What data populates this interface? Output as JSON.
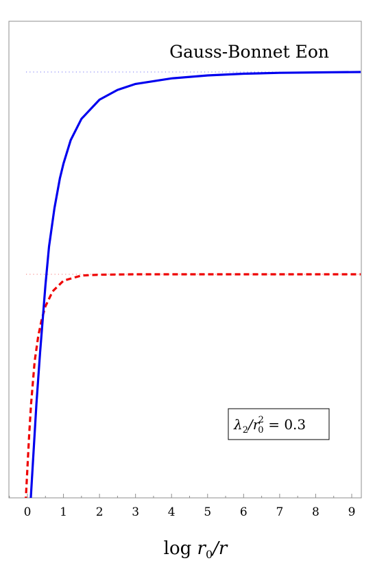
{
  "chart_data": {
    "type": "line",
    "title": "Gauss-Bonnet Eon",
    "xlabel_parts": {
      "pre": "log ",
      "r": "r",
      "sub": "0",
      "post": "/r"
    },
    "xlim": [
      -0.5,
      9.25
    ],
    "xticks": [
      0,
      1,
      2,
      3,
      4,
      5,
      6,
      7,
      8,
      9
    ],
    "annotation": {
      "lambda": "λ",
      "lsub": "2",
      "slash": "/r",
      "rsub": "0",
      "rsup": "2",
      "rhs": " = 0.3"
    },
    "series": [
      {
        "color": "#0000ee",
        "style": "solid",
        "asymptote": 1.0,
        "points": [
          [
            0.08,
            -0.02
          ],
          [
            0.15,
            0.08
          ],
          [
            0.25,
            0.22
          ],
          [
            0.35,
            0.34
          ],
          [
            0.5,
            0.5
          ],
          [
            0.6,
            0.59
          ],
          [
            0.75,
            0.68
          ],
          [
            0.9,
            0.75
          ],
          [
            1.0,
            0.785
          ],
          [
            1.2,
            0.84
          ],
          [
            1.5,
            0.89
          ],
          [
            2.0,
            0.935
          ],
          [
            2.5,
            0.958
          ],
          [
            3.0,
            0.972
          ],
          [
            4.0,
            0.985
          ],
          [
            5.0,
            0.992
          ],
          [
            6.0,
            0.996
          ],
          [
            7.0,
            0.998
          ],
          [
            8.0,
            0.999
          ],
          [
            9.25,
            1.0
          ]
        ]
      },
      {
        "color": "#ee0000",
        "style": "dashed",
        "asymptote": 0.525,
        "points": [
          [
            -0.05,
            -0.01
          ],
          [
            0.0,
            0.07
          ],
          [
            0.05,
            0.15
          ],
          [
            0.1,
            0.22
          ],
          [
            0.2,
            0.32
          ],
          [
            0.3,
            0.38
          ],
          [
            0.4,
            0.42
          ],
          [
            0.5,
            0.45
          ],
          [
            0.7,
            0.485
          ],
          [
            1.0,
            0.51
          ],
          [
            1.5,
            0.522
          ],
          [
            2.0,
            0.524
          ],
          [
            3.0,
            0.525
          ],
          [
            9.25,
            0.525
          ]
        ]
      }
    ]
  }
}
